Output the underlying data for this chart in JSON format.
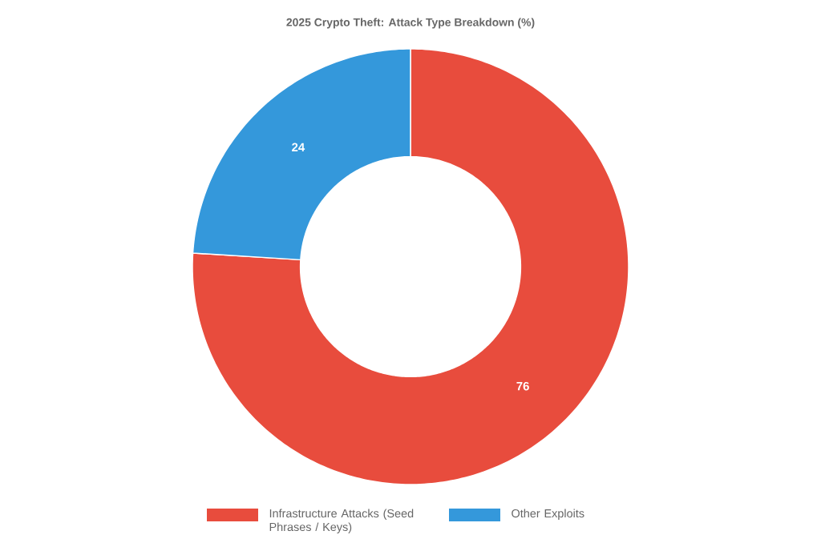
{
  "chart_data": {
    "type": "donut",
    "title": "2025 Crypto Theft: Attack Type Breakdown (%)",
    "categories": [
      "Infrastructure Attacks (Seed Phrases / Keys)",
      "Other Exploits"
    ],
    "values": [
      76,
      24
    ],
    "colors": [
      "#e84c3d",
      "#3498db"
    ],
    "data_labels": true,
    "legend": "bottom"
  }
}
